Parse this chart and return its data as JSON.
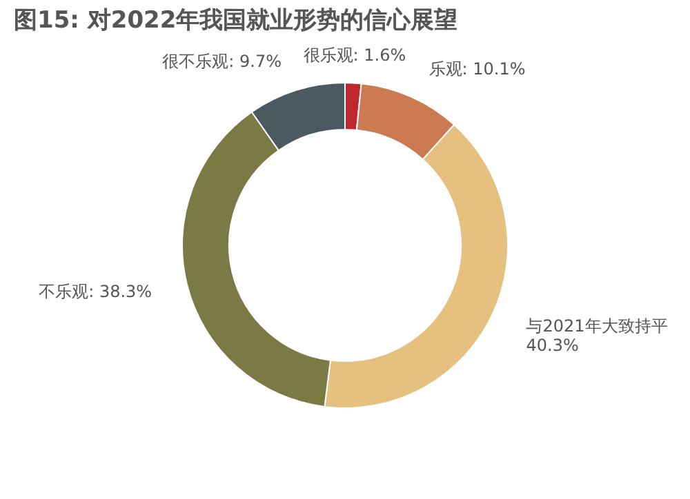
{
  "chart_data": {
    "type": "donut",
    "title": "图15: 对2022年我国就业形势的信心展望",
    "categories": [
      "很乐观",
      "乐观",
      "与2021年大致持平",
      "不乐观",
      "很不乐观"
    ],
    "values": [
      1.6,
      10.1,
      40.3,
      38.3,
      9.7
    ],
    "value_labels": [
      "1.6%",
      "10.1%",
      "40.3%",
      "38.3%",
      "9.7%"
    ],
    "colors": [
      "#c0272d",
      "#cc7a52",
      "#e5c07e",
      "#7b7a45",
      "#4b5a60"
    ],
    "legend": false
  }
}
